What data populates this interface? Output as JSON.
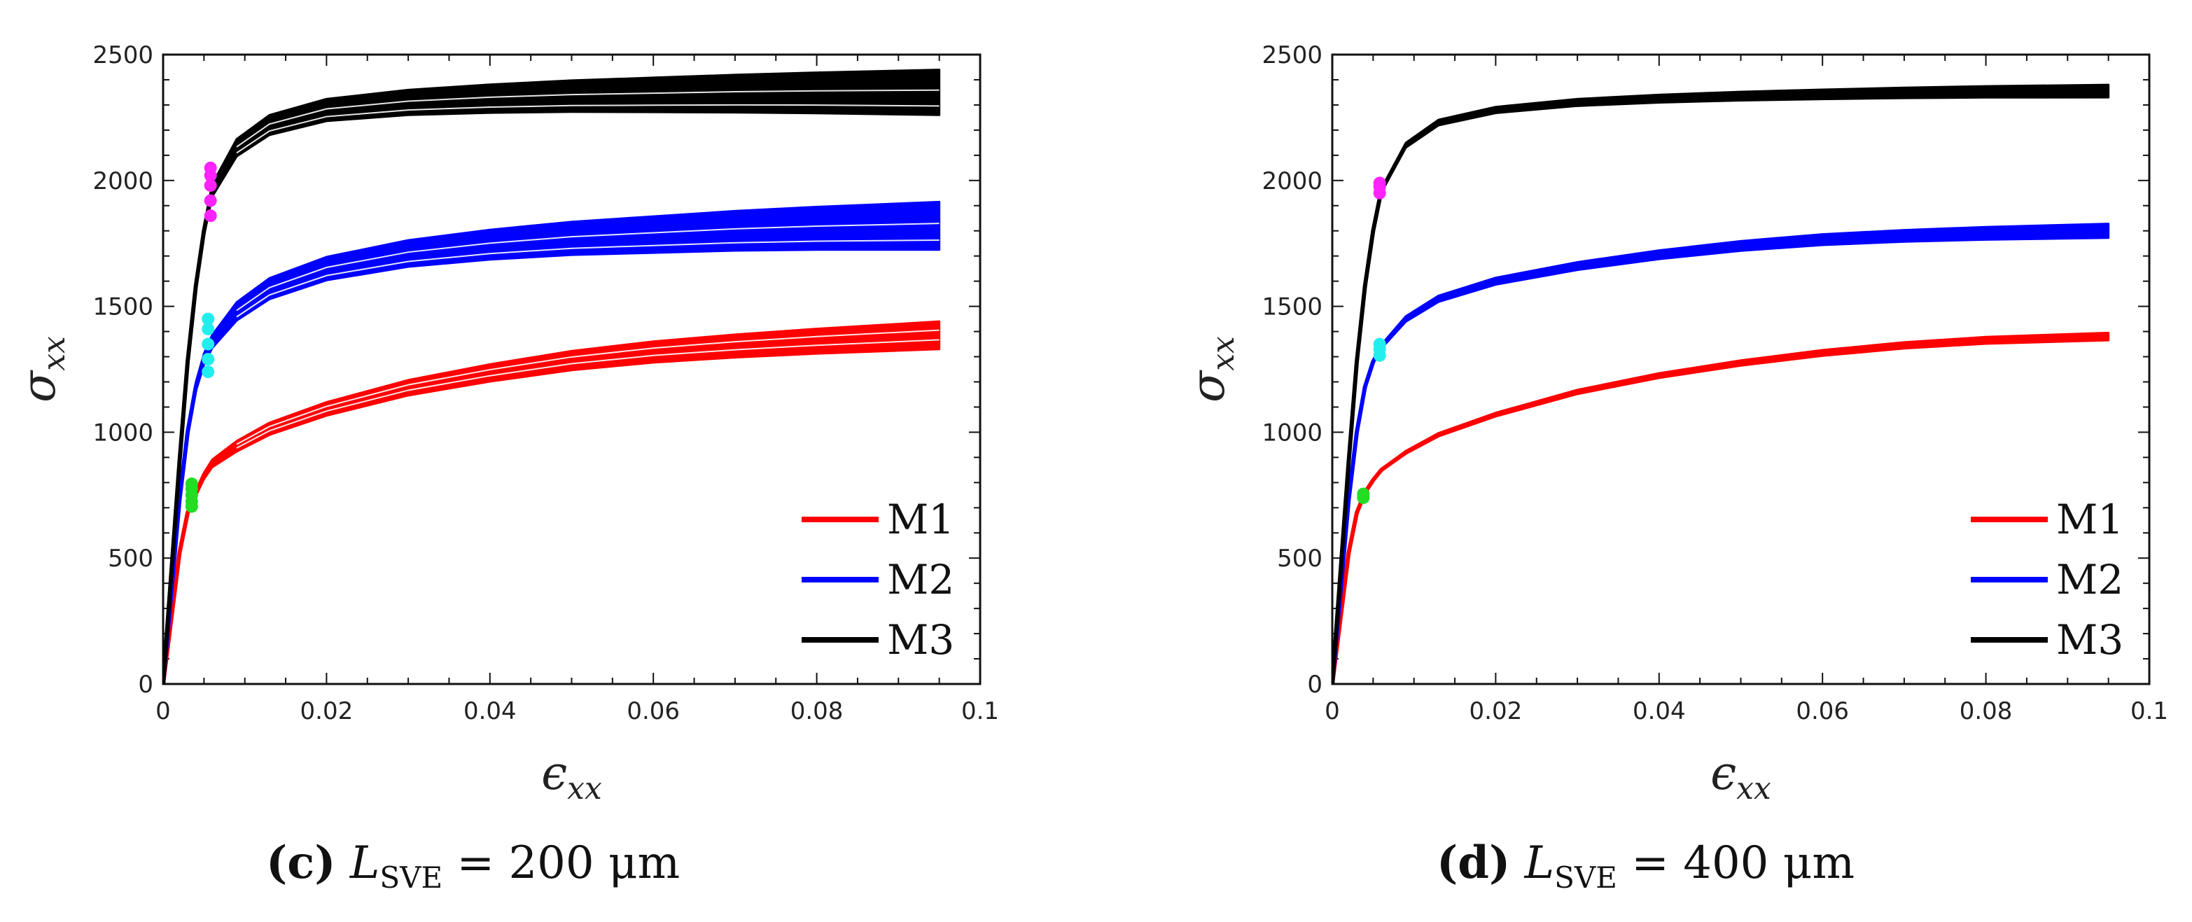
{
  "chart_data": [
    {
      "type": "line",
      "panel": "c",
      "xlabel": "ϵxx",
      "ylabel": "σxx",
      "xlim": [
        0,
        0.1
      ],
      "ylim": [
        0,
        2500
      ],
      "xticks": [
        "0",
        "0.02",
        "0.04",
        "0.06",
        "0.08",
        "0.1"
      ],
      "yticks": [
        "0",
        "500",
        "1000",
        "1500",
        "2000",
        "2500"
      ],
      "x": [
        0,
        0.002,
        0.003,
        0.004,
        0.005,
        0.006,
        0.009,
        0.013,
        0.02,
        0.03,
        0.04,
        0.05,
        0.06,
        0.07,
        0.08,
        0.095
      ],
      "series": [
        {
          "name": "M1",
          "color": "#ff0000",
          "values": [
            0,
            520,
            680,
            760,
            830,
            880,
            950,
            1020,
            1100,
            1185,
            1245,
            1295,
            1330,
            1355,
            1375,
            1400
          ],
          "band": [
            70,
            40
          ],
          "yield_point": {
            "x": 0.0035,
            "values": [
              705,
              725,
              750,
              775,
              795
            ],
            "color": "#22dd22"
          }
        },
        {
          "name": "M2",
          "color": "#0000ff",
          "values": [
            0,
            730,
            1000,
            1180,
            1290,
            1360,
            1480,
            1570,
            1650,
            1710,
            1745,
            1770,
            1785,
            1800,
            1810,
            1820
          ],
          "band": [
            95,
            95
          ],
          "yield_point": {
            "x": 0.0055,
            "values": [
              1240,
              1290,
              1350,
              1410,
              1450
            ],
            "color": "#22eeee"
          }
        },
        {
          "name": "M3",
          "color": "#000000",
          "values": [
            0,
            880,
            1280,
            1580,
            1800,
            1960,
            2130,
            2220,
            2280,
            2310,
            2325,
            2335,
            2340,
            2345,
            2348,
            2350
          ],
          "band": [
            90,
            90
          ],
          "yield_point": {
            "x": 0.0058,
            "values": [
              1860,
              1920,
              1980,
              2020,
              2050
            ],
            "color": "#ff22ff"
          }
        }
      ],
      "legend_position": "bottom-right",
      "caption": {
        "letter": "(c)",
        "var": "L",
        "sub": "SVE",
        "value": "= 200 μm"
      }
    },
    {
      "type": "line",
      "panel": "d",
      "xlabel": "ϵxx",
      "ylabel": "σxx",
      "xlim": [
        0,
        0.1
      ],
      "ylim": [
        0,
        2500
      ],
      "xticks": [
        "0",
        "0.02",
        "0.04",
        "0.06",
        "0.08",
        "0.1"
      ],
      "yticks": [
        "0",
        "500",
        "1000",
        "1500",
        "2000",
        "2500"
      ],
      "x": [
        0,
        0.002,
        0.003,
        0.004,
        0.005,
        0.006,
        0.009,
        0.013,
        0.02,
        0.03,
        0.04,
        0.05,
        0.06,
        0.07,
        0.08,
        0.095
      ],
      "series": [
        {
          "name": "M1",
          "color": "#ff0000",
          "values": [
            0,
            520,
            680,
            760,
            810,
            850,
            920,
            990,
            1070,
            1160,
            1225,
            1275,
            1315,
            1345,
            1365,
            1380
          ],
          "band": [
            15,
            15
          ],
          "yield_point": {
            "x": 0.0038,
            "values": [
              740,
              755
            ],
            "color": "#22dd22"
          }
        },
        {
          "name": "M2",
          "color": "#0000ff",
          "values": [
            0,
            730,
            1000,
            1180,
            1280,
            1340,
            1450,
            1530,
            1600,
            1660,
            1705,
            1740,
            1765,
            1780,
            1790,
            1800
          ],
          "band": [
            28,
            28
          ],
          "yield_point": {
            "x": 0.0058,
            "values": [
              1305,
              1330,
              1350
            ],
            "color": "#22eeee"
          }
        },
        {
          "name": "M3",
          "color": "#000000",
          "values": [
            0,
            880,
            1280,
            1580,
            1800,
            1960,
            2140,
            2230,
            2280,
            2310,
            2325,
            2335,
            2342,
            2348,
            2352,
            2355
          ],
          "band": [
            25,
            25
          ],
          "yield_point": {
            "x": 0.0058,
            "values": [
              1950,
              1975,
              1990
            ],
            "color": "#ff22ff"
          }
        }
      ],
      "legend_position": "bottom-right",
      "caption": {
        "letter": "(d)",
        "var": "L",
        "sub": "SVE",
        "value": "= 400 μm"
      }
    }
  ]
}
